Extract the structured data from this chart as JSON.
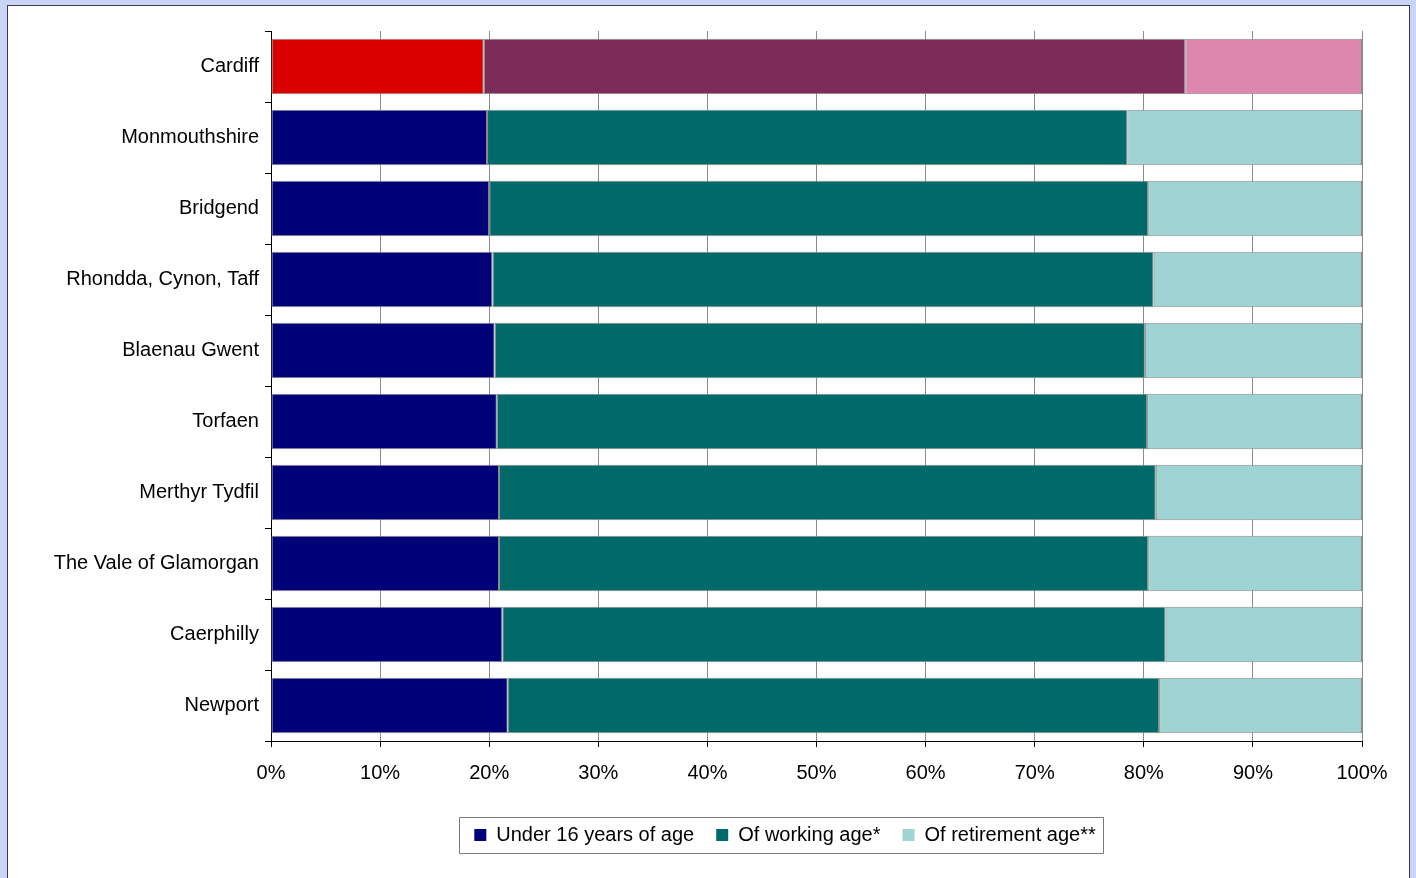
{
  "chart_data": {
    "type": "bar",
    "orientation": "horizontal",
    "stacked": true,
    "categories": [
      "Cardiff",
      "Monmouthshire",
      "Bridgend",
      "Rhondda, Cynon, Taff",
      "Blaenau Gwent",
      "Torfaen",
      "Merthyr Tydfil",
      "The Vale of Glamorgan",
      "Caerphilly",
      "Newport"
    ],
    "series": [
      {
        "name": "Under 16 years of age",
        "color": "#000078",
        "colors": [
          "#d80000",
          "#000078",
          "#000078",
          "#000078",
          "#000078",
          "#000078",
          "#000078",
          "#000078",
          "#000078",
          "#000078"
        ],
        "values": [
          19.5,
          19.8,
          20.0,
          20.3,
          20.5,
          20.7,
          20.9,
          20.9,
          21.2,
          21.7
        ]
      },
      {
        "name": "Of working age*",
        "color": "#006a6a",
        "colors": [
          "#7c2c58",
          "#006a6a",
          "#006a6a",
          "#006a6a",
          "#006a6a",
          "#006a6a",
          "#006a6a",
          "#006a6a",
          "#006a6a",
          "#006a6a"
        ],
        "values": [
          64.3,
          58.7,
          60.4,
          60.6,
          59.6,
          59.6,
          60.2,
          59.5,
          60.8,
          59.7
        ]
      },
      {
        "name": "Of retirement age**",
        "color": "#a0d4d4",
        "colors": [
          "#dc86b0",
          "#a0d4d4",
          "#a0d4d4",
          "#a0d4d4",
          "#a0d4d4",
          "#a0d4d4",
          "#a0d4d4",
          "#a0d4d4",
          "#a0d4d4",
          "#a0d4d4"
        ],
        "values": [
          16.2,
          21.5,
          19.6,
          19.1,
          19.9,
          19.7,
          18.9,
          19.6,
          18.0,
          18.6
        ]
      }
    ],
    "xlim": [
      0,
      100
    ],
    "xticks": [
      {
        "value": 0,
        "label": "0%"
      },
      {
        "value": 10,
        "label": "10%"
      },
      {
        "value": 20,
        "label": "20%"
      },
      {
        "value": 30,
        "label": "30%"
      },
      {
        "value": 40,
        "label": "40%"
      },
      {
        "value": 50,
        "label": "50%"
      },
      {
        "value": 60,
        "label": "60%"
      },
      {
        "value": 70,
        "label": "70%"
      },
      {
        "value": 80,
        "label": "80%"
      },
      {
        "value": 90,
        "label": "90%"
      },
      {
        "value": 100,
        "label": "100%"
      }
    ],
    "grid": "x",
    "legend": "bottom"
  }
}
